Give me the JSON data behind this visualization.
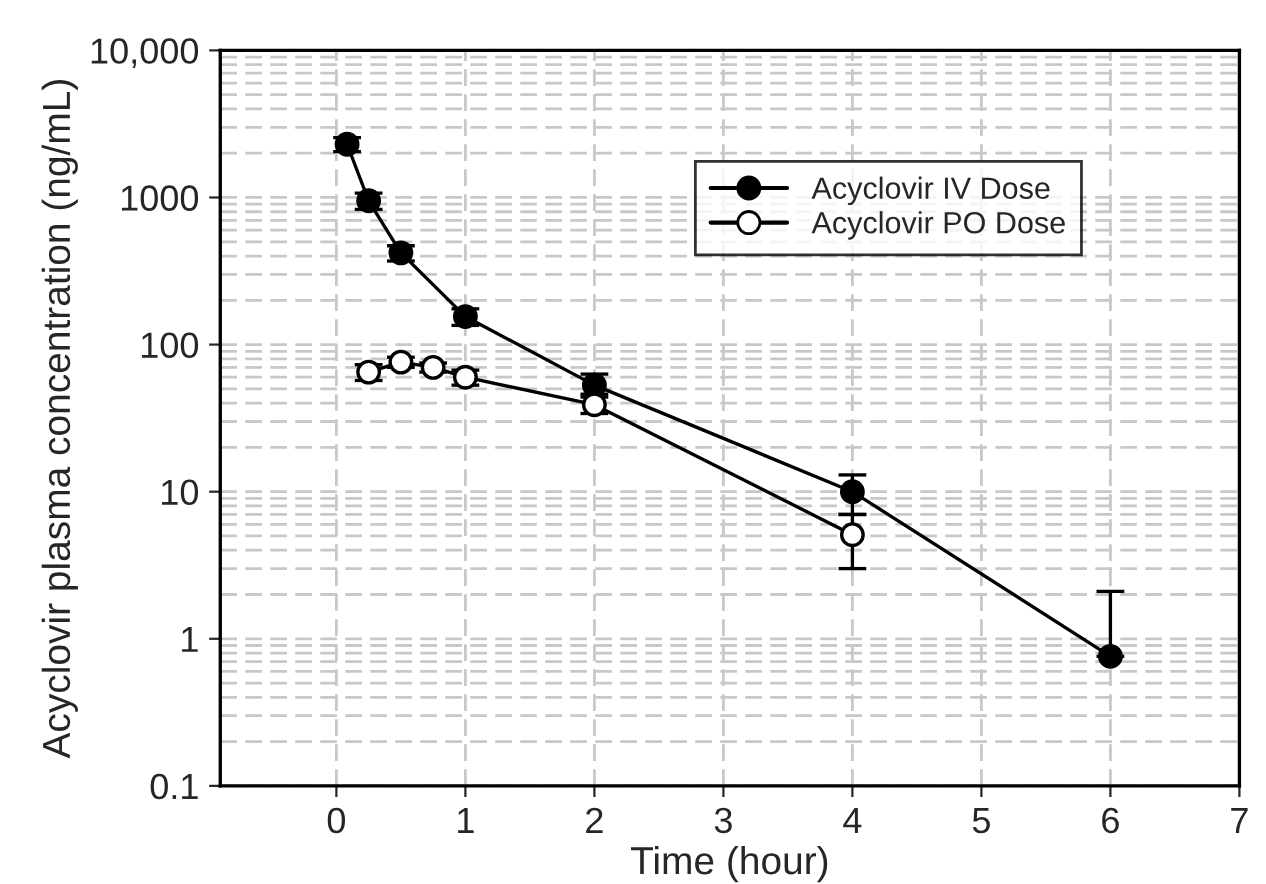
{
  "chart_data": {
    "type": "line",
    "xlabel": "Time (hour)",
    "ylabel": "Acyclovir plasma concentration (ng/mL)",
    "xlim": [
      -0.9,
      7
    ],
    "xticks": [
      0,
      1,
      2,
      3,
      4,
      5,
      6,
      7
    ],
    "ylim": [
      0.1,
      10000
    ],
    "yticks": [
      0.1,
      1,
      10,
      100,
      1000,
      {
        "value": 10000,
        "label": "10,000"
      }
    ],
    "log": "y",
    "grid": true,
    "legend": "top right",
    "marker": "circle",
    "line_style": "solid",
    "series": [
      {
        "name": "Acyclovir IV Dose",
        "color": "#000000",
        "x": [
          0.083,
          0.25,
          0.5,
          1,
          2,
          4,
          6
        ],
        "values": [
          2300,
          950,
          420,
          155,
          53,
          10,
          0.76
        ],
        "errors": [
          250,
          120,
          50,
          20,
          [
            46,
            63
          ],
          3,
          [
            0.76,
            2.1
          ]
        ]
      },
      {
        "name": "Acyclovir PO Dose",
        "color": "#ffffff",
        "x": [
          0.25,
          0.5,
          0.75,
          1,
          2,
          4
        ],
        "values": [
          65,
          76,
          70,
          60,
          39,
          5.1
        ],
        "errors": [
          8,
          6,
          5,
          7,
          5,
          [
            3,
            7
          ]
        ]
      }
    ]
  }
}
